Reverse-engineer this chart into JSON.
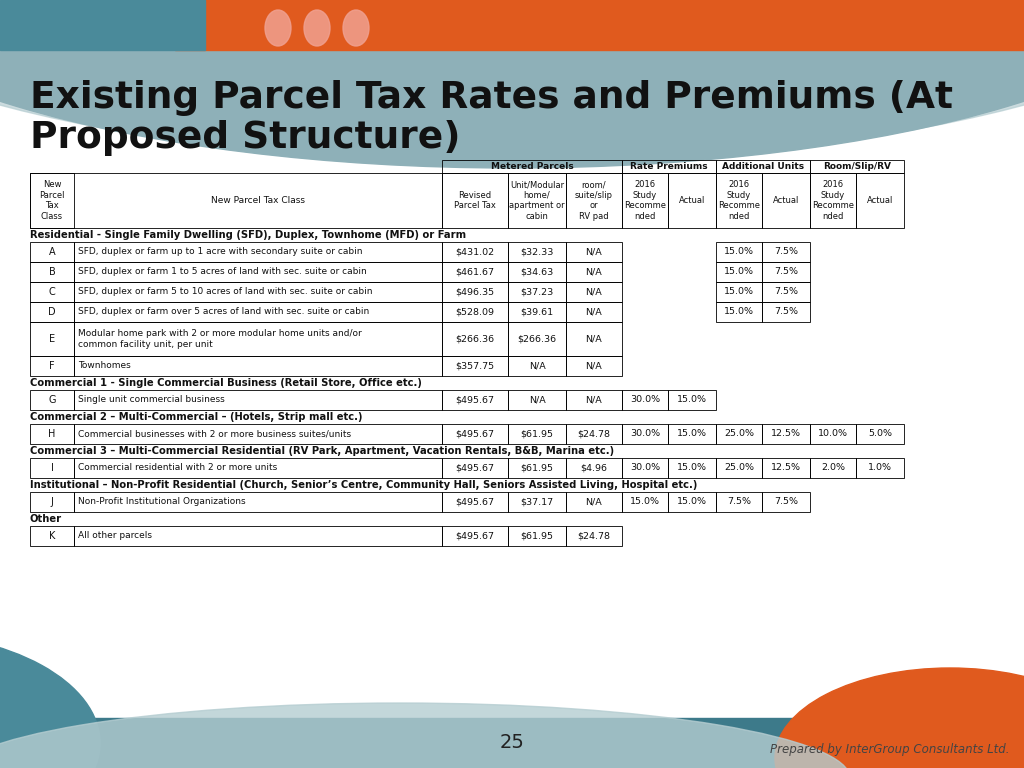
{
  "title_line1": "Existing Parcel Tax Rates and Premiums (At",
  "title_line2": "Proposed Structure)",
  "section_headers": [
    "Residential - Single Family Dwelling (SFD), Duplex, Townhome (MFD) or Farm",
    "Commercial 1 - Single Commercial Business (Retail Store, Office etc.)",
    "Commercial 2 – Multi-Commercial – (Hotels, Strip mall etc.)",
    "Commercial 3 – Multi-Commercial Residential (RV Park, Apartment, Vacation Rentals, B&B, Marina etc.)",
    "Institutional – Non-Profit Residential (Church, Senior’s Centre, Community Hall, Seniors Assisted Living, Hospital etc.)",
    "Other"
  ],
  "rows": [
    {
      "letter": "A",
      "desc": "SFD, duplex or farm up to 1 acre with secondary suite or cabin",
      "c1": "$431.02",
      "c2": "$32.33",
      "c3": "N/A",
      "c4": "",
      "c5": "",
      "c6": "15.0%",
      "c7": "7.5%",
      "c8": "",
      "c9": ""
    },
    {
      "letter": "B",
      "desc": "SFD, duplex or farm 1 to 5 acres of land with sec. suite or cabin",
      "c1": "$461.67",
      "c2": "$34.63",
      "c3": "N/A",
      "c4": "",
      "c5": "",
      "c6": "15.0%",
      "c7": "7.5%",
      "c8": "",
      "c9": ""
    },
    {
      "letter": "C",
      "desc": "SFD, duplex or farm 5 to 10 acres of land with sec. suite or cabin",
      "c1": "$496.35",
      "c2": "$37.23",
      "c3": "N/A",
      "c4": "",
      "c5": "",
      "c6": "15.0%",
      "c7": "7.5%",
      "c8": "",
      "c9": ""
    },
    {
      "letter": "D",
      "desc": "SFD, duplex or farm over 5 acres of land with sec. suite or cabin",
      "c1": "$528.09",
      "c2": "$39.61",
      "c3": "N/A",
      "c4": "",
      "c5": "",
      "c6": "15.0%",
      "c7": "7.5%",
      "c8": "",
      "c9": ""
    },
    {
      "letter": "E",
      "desc": "Modular home park with 2 or more modular home units and/or\ncommon facility unit, per unit",
      "c1": "$266.36",
      "c2": "$266.36",
      "c3": "N/A",
      "c4": "",
      "c5": "",
      "c6": "",
      "c7": "",
      "c8": "",
      "c9": ""
    },
    {
      "letter": "F",
      "desc": "Townhomes",
      "c1": "$357.75",
      "c2": "N/A",
      "c3": "N/A",
      "c4": "",
      "c5": "",
      "c6": "",
      "c7": "",
      "c8": "",
      "c9": ""
    },
    {
      "letter": "G",
      "desc": "Single unit commercial business",
      "c1": "$495.67",
      "c2": "N/A",
      "c3": "N/A",
      "c4": "30.0%",
      "c5": "15.0%",
      "c6": "",
      "c7": "",
      "c8": "",
      "c9": ""
    },
    {
      "letter": "H",
      "desc": "Commercial businesses with 2 or more business suites/units",
      "c1": "$495.67",
      "c2": "$61.95",
      "c3": "$24.78",
      "c4": "30.0%",
      "c5": "15.0%",
      "c6": "25.0%",
      "c7": "12.5%",
      "c8": "10.0%",
      "c9": "5.0%"
    },
    {
      "letter": "I",
      "desc": "Commercial residential with 2 or more units",
      "c1": "$495.67",
      "c2": "$61.95",
      "c3": "$4.96",
      "c4": "30.0%",
      "c5": "15.0%",
      "c6": "25.0%",
      "c7": "12.5%",
      "c8": "2.0%",
      "c9": "1.0%"
    },
    {
      "letter": "J",
      "desc": "Non-Profit Institutional Organizations",
      "c1": "$495.67",
      "c2": "$37.17",
      "c3": "N/A",
      "c4": "15.0%",
      "c5": "15.0%",
      "c6": "7.5%",
      "c7": "7.5%",
      "c8": "",
      "c9": ""
    },
    {
      "letter": "K",
      "desc": "All other parcels",
      "c1": "$495.67",
      "c2": "$61.95",
      "c3": "$24.78",
      "c4": "",
      "c5": "",
      "c6": "",
      "c7": "",
      "c8": "",
      "c9": ""
    }
  ],
  "row_sections": [
    0,
    0,
    0,
    0,
    0,
    0,
    1,
    2,
    3,
    4,
    5
  ],
  "footer_num": "25",
  "footer_text": "Prepared by InterGroup Consultants Ltd.",
  "teal_color": "#4A8A9A",
  "orange_color": "#E05A1E",
  "arc_color1": "#8EB0B8",
  "arc_color2": "#B5CDD1",
  "bottom_teal": "#3D7A8A",
  "bottom_orange": "#E05A1E"
}
